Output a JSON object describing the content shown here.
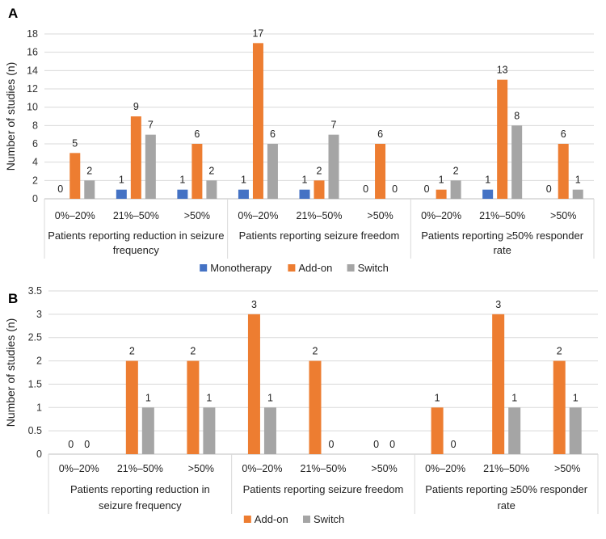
{
  "colors": {
    "monotherapy": "#4472c4",
    "addon": "#ed7d31",
    "switch": "#a5a5a5",
    "grid_line": "#d9d9d9",
    "axis_line": "#bfbfbf"
  },
  "chart_data": [
    {
      "panel": "A",
      "type": "bar",
      "ylabel": "Number of studies (n)",
      "ylim": [
        0,
        18
      ],
      "ytick_step": 2,
      "yticks": [
        "0",
        "2",
        "4",
        "6",
        "8",
        "10",
        "12",
        "14",
        "16",
        "18"
      ],
      "categories": [
        "0%–20%",
        "21%–50%",
        ">50%",
        "0%–20%",
        "21%–50%",
        ">50%",
        "0%–20%",
        "21%–50%",
        ">50%"
      ],
      "groups": [
        {
          "label": [
            "Patients reporting reduction in seizure",
            "frequency"
          ],
          "size": 3
        },
        {
          "label": [
            "Patients reporting seizure freedom"
          ],
          "size": 3
        },
        {
          "label": [
            "Patients reporting ≥50% responder",
            "rate"
          ],
          "size": 3
        }
      ],
      "series": [
        {
          "name": "Monotherapy",
          "color_key": "monotherapy",
          "values": [
            0,
            1,
            1,
            1,
            1,
            0,
            0,
            1,
            0
          ]
        },
        {
          "name": "Add-on",
          "color_key": "addon",
          "values": [
            5,
            9,
            6,
            17,
            2,
            6,
            1,
            13,
            6
          ]
        },
        {
          "name": "Switch",
          "color_key": "switch",
          "values": [
            2,
            7,
            2,
            6,
            7,
            0,
            2,
            8,
            1
          ]
        }
      ],
      "legend": "bottom"
    },
    {
      "panel": "B",
      "type": "bar",
      "ylabel": "Number of studies (n)",
      "ylim": [
        0,
        3.5
      ],
      "ytick_step": 0.5,
      "yticks": [
        "0",
        "0.5",
        "1",
        "1.5",
        "2",
        "2.5",
        "3",
        "3.5"
      ],
      "categories": [
        "0%–20%",
        "21%–50%",
        ">50%",
        "0%–20%",
        "21%–50%",
        ">50%",
        "0%–20%",
        "21%–50%",
        ">50%"
      ],
      "groups": [
        {
          "label": [
            "Patients reporting reduction in",
            "seizure frequency"
          ],
          "size": 3
        },
        {
          "label": [
            "Patients reporting seizure freedom"
          ],
          "size": 3
        },
        {
          "label": [
            "Patients reporting ≥50% responder",
            "rate"
          ],
          "size": 3
        }
      ],
      "series": [
        {
          "name": "Add-on",
          "color_key": "addon",
          "values": [
            0,
            2,
            2,
            3,
            2,
            0,
            1,
            3,
            2
          ]
        },
        {
          "name": "Switch",
          "color_key": "switch",
          "values": [
            0,
            1,
            1,
            1,
            0,
            0,
            0,
            1,
            1
          ]
        }
      ],
      "legend": "bottom"
    }
  ]
}
